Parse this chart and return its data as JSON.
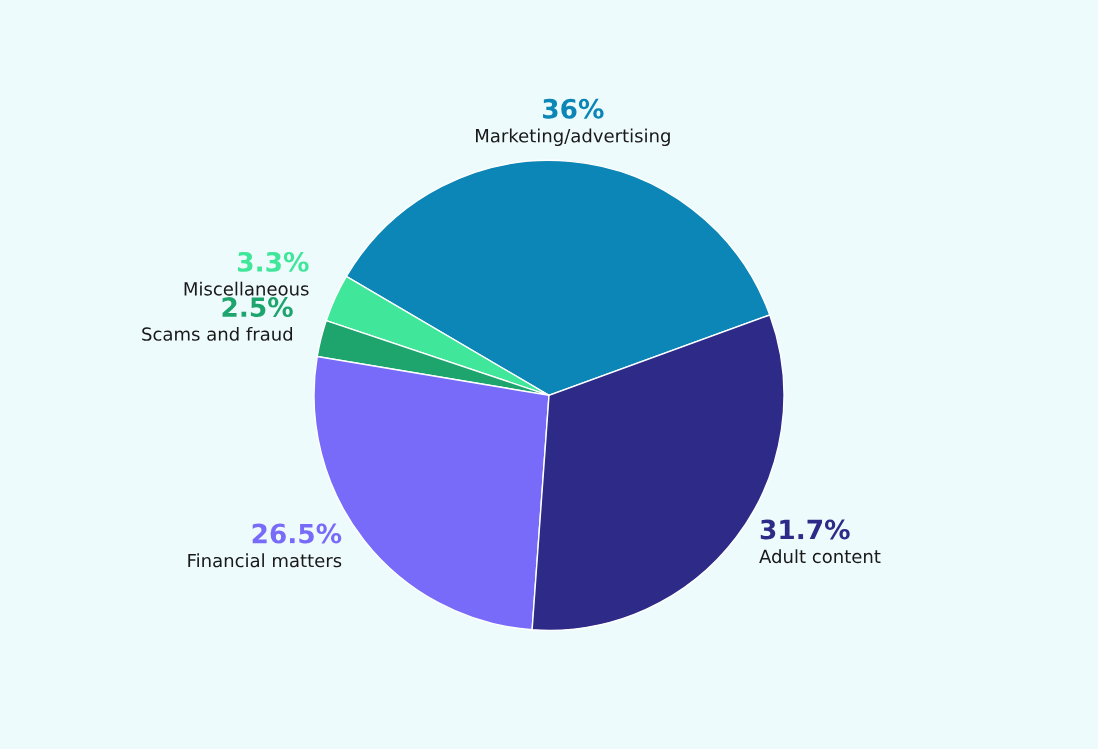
{
  "chart_data": {
    "type": "pie",
    "categories": [
      "Marketing/advertising",
      "Miscellaneous",
      "Scams and fraud",
      "Financial matters",
      "Adult content"
    ],
    "values": [
      36,
      3.3,
      2.5,
      26.5,
      31.7
    ],
    "value_labels": [
      "36%",
      "3.3%",
      "2.5%",
      "26.5%",
      "31.7%"
    ],
    "colors": [
      "#0b86b6",
      "#40e69a",
      "#1da56d",
      "#796bfa",
      "#2e2b88"
    ]
  }
}
